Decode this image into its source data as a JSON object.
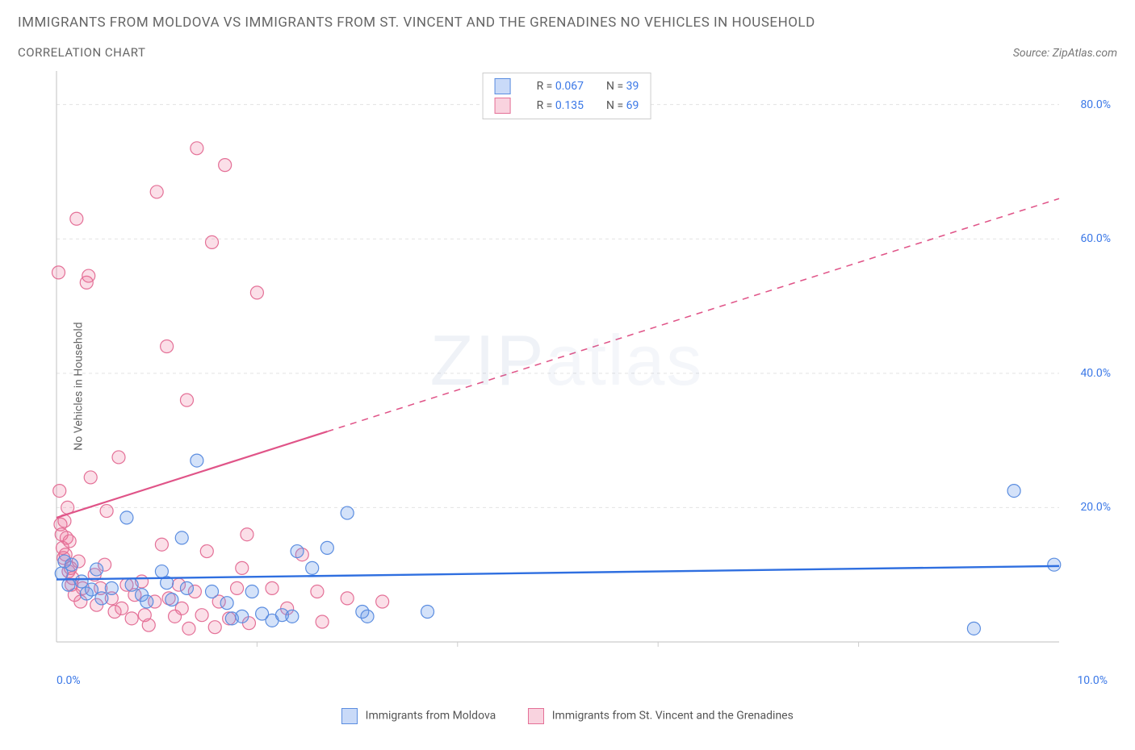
{
  "title": "IMMIGRANTS FROM MOLDOVA VS IMMIGRANTS FROM ST. VINCENT AND THE GRENADINES NO VEHICLES IN HOUSEHOLD",
  "subtitle": "CORRELATION CHART",
  "source": "Source: ZipAtlas.com",
  "watermark_a": "ZIP",
  "watermark_b": "atlas",
  "ylabel": "No Vehicles in Household",
  "xmin": 0.0,
  "xmax": 10.0,
  "ymin": 0.0,
  "ymax": 85.0,
  "xtick_min_label": "0.0%",
  "xtick_max_label": "10.0%",
  "yticks": [
    20.0,
    40.0,
    60.0,
    80.0
  ],
  "ytick_labels": [
    "20.0%",
    "40.0%",
    "60.0%",
    "80.0%"
  ],
  "grid_color": "#e3e3e3",
  "axis_color": "#cccccc",
  "background_color": "#ffffff",
  "marker_radius": 8,
  "marker_stroke_width": 1.2,
  "series": {
    "moldova": {
      "label": "Immigrants from Moldova",
      "fill": "rgba(100,150,235,0.28)",
      "stroke": "#5b8de0",
      "legend_fill": "rgba(100,150,235,0.35)",
      "legend_stroke": "#5b8de0",
      "R": "0.067",
      "N": "39",
      "trend": {
        "x1": 0.0,
        "y1": 9.3,
        "x2": 10.0,
        "y2": 11.3,
        "solid_until_x": 10.0,
        "color": "#2f6fe0",
        "width": 2.4
      },
      "points": [
        [
          0.05,
          10.2
        ],
        [
          0.08,
          12.0
        ],
        [
          0.12,
          8.5
        ],
        [
          0.15,
          11.5
        ],
        [
          0.25,
          9.0
        ],
        [
          0.3,
          7.2
        ],
        [
          0.35,
          7.8
        ],
        [
          0.4,
          10.8
        ],
        [
          0.45,
          6.5
        ],
        [
          0.55,
          8.0
        ],
        [
          0.7,
          18.5
        ],
        [
          0.75,
          8.5
        ],
        [
          0.85,
          7.0
        ],
        [
          0.9,
          6.0
        ],
        [
          1.05,
          10.5
        ],
        [
          1.1,
          8.8
        ],
        [
          1.15,
          6.3
        ],
        [
          1.25,
          15.5
        ],
        [
          1.3,
          8.0
        ],
        [
          1.4,
          27.0
        ],
        [
          1.55,
          7.5
        ],
        [
          1.7,
          5.8
        ],
        [
          1.75,
          3.5
        ],
        [
          1.85,
          3.8
        ],
        [
          1.95,
          7.5
        ],
        [
          2.05,
          4.2
        ],
        [
          2.15,
          3.2
        ],
        [
          2.25,
          4.0
        ],
        [
          2.35,
          3.8
        ],
        [
          2.4,
          13.5
        ],
        [
          2.55,
          11.0
        ],
        [
          2.7,
          14.0
        ],
        [
          2.9,
          19.2
        ],
        [
          3.05,
          4.5
        ],
        [
          3.1,
          3.8
        ],
        [
          3.7,
          4.5
        ],
        [
          9.15,
          2.0
        ],
        [
          9.55,
          22.5
        ],
        [
          9.95,
          11.5
        ]
      ]
    },
    "svg_country": {
      "label": "Immigrants from St. Vincent and the Grenadines",
      "fill": "rgba(235,110,150,0.22)",
      "stroke": "#e47097",
      "legend_fill": "rgba(235,110,150,0.30)",
      "legend_stroke": "#e47097",
      "R": "0.135",
      "N": "69",
      "trend": {
        "x1": 0.0,
        "y1": 18.5,
        "x2": 10.0,
        "y2": 66.0,
        "solid_until_x": 2.7,
        "color": "#e05488",
        "width": 2.2
      },
      "points": [
        [
          0.02,
          55.0
        ],
        [
          0.03,
          22.5
        ],
        [
          0.04,
          17.5
        ],
        [
          0.05,
          16.0
        ],
        [
          0.06,
          14.0
        ],
        [
          0.07,
          12.5
        ],
        [
          0.08,
          18.0
        ],
        [
          0.09,
          13.0
        ],
        [
          0.1,
          15.5
        ],
        [
          0.11,
          20.0
        ],
        [
          0.12,
          10.5
        ],
        [
          0.13,
          15.0
        ],
        [
          0.14,
          11.0
        ],
        [
          0.15,
          8.5
        ],
        [
          0.16,
          9.5
        ],
        [
          0.18,
          7.0
        ],
        [
          0.2,
          63.0
        ],
        [
          0.22,
          12.0
        ],
        [
          0.24,
          6.0
        ],
        [
          0.26,
          8.0
        ],
        [
          0.3,
          53.5
        ],
        [
          0.32,
          54.5
        ],
        [
          0.34,
          24.5
        ],
        [
          0.38,
          10.0
        ],
        [
          0.4,
          5.5
        ],
        [
          0.44,
          8.0
        ],
        [
          0.48,
          11.5
        ],
        [
          0.5,
          19.5
        ],
        [
          0.55,
          6.5
        ],
        [
          0.58,
          4.5
        ],
        [
          0.62,
          27.5
        ],
        [
          0.65,
          5.0
        ],
        [
          0.7,
          8.5
        ],
        [
          0.75,
          3.5
        ],
        [
          0.78,
          7.0
        ],
        [
          0.85,
          9.0
        ],
        [
          0.88,
          4.0
        ],
        [
          0.92,
          2.5
        ],
        [
          0.98,
          6.0
        ],
        [
          1.0,
          67.0
        ],
        [
          1.05,
          14.5
        ],
        [
          1.1,
          44.0
        ],
        [
          1.12,
          6.5
        ],
        [
          1.18,
          3.8
        ],
        [
          1.22,
          8.5
        ],
        [
          1.25,
          5.0
        ],
        [
          1.3,
          36.0
        ],
        [
          1.32,
          2.0
        ],
        [
          1.38,
          7.5
        ],
        [
          1.4,
          73.5
        ],
        [
          1.45,
          4.0
        ],
        [
          1.5,
          13.5
        ],
        [
          1.55,
          59.5
        ],
        [
          1.58,
          2.2
        ],
        [
          1.62,
          6.0
        ],
        [
          1.68,
          71.0
        ],
        [
          1.72,
          3.5
        ],
        [
          1.8,
          8.0
        ],
        [
          1.85,
          11.0
        ],
        [
          1.9,
          16.0
        ],
        [
          1.92,
          2.8
        ],
        [
          2.0,
          52.0
        ],
        [
          2.15,
          8.0
        ],
        [
          2.3,
          5.0
        ],
        [
          2.45,
          13.0
        ],
        [
          2.6,
          7.5
        ],
        [
          2.65,
          3.0
        ],
        [
          2.9,
          6.5
        ],
        [
          3.25,
          6.0
        ]
      ]
    }
  },
  "legend_labels": {
    "R": "R =",
    "N": "N ="
  }
}
